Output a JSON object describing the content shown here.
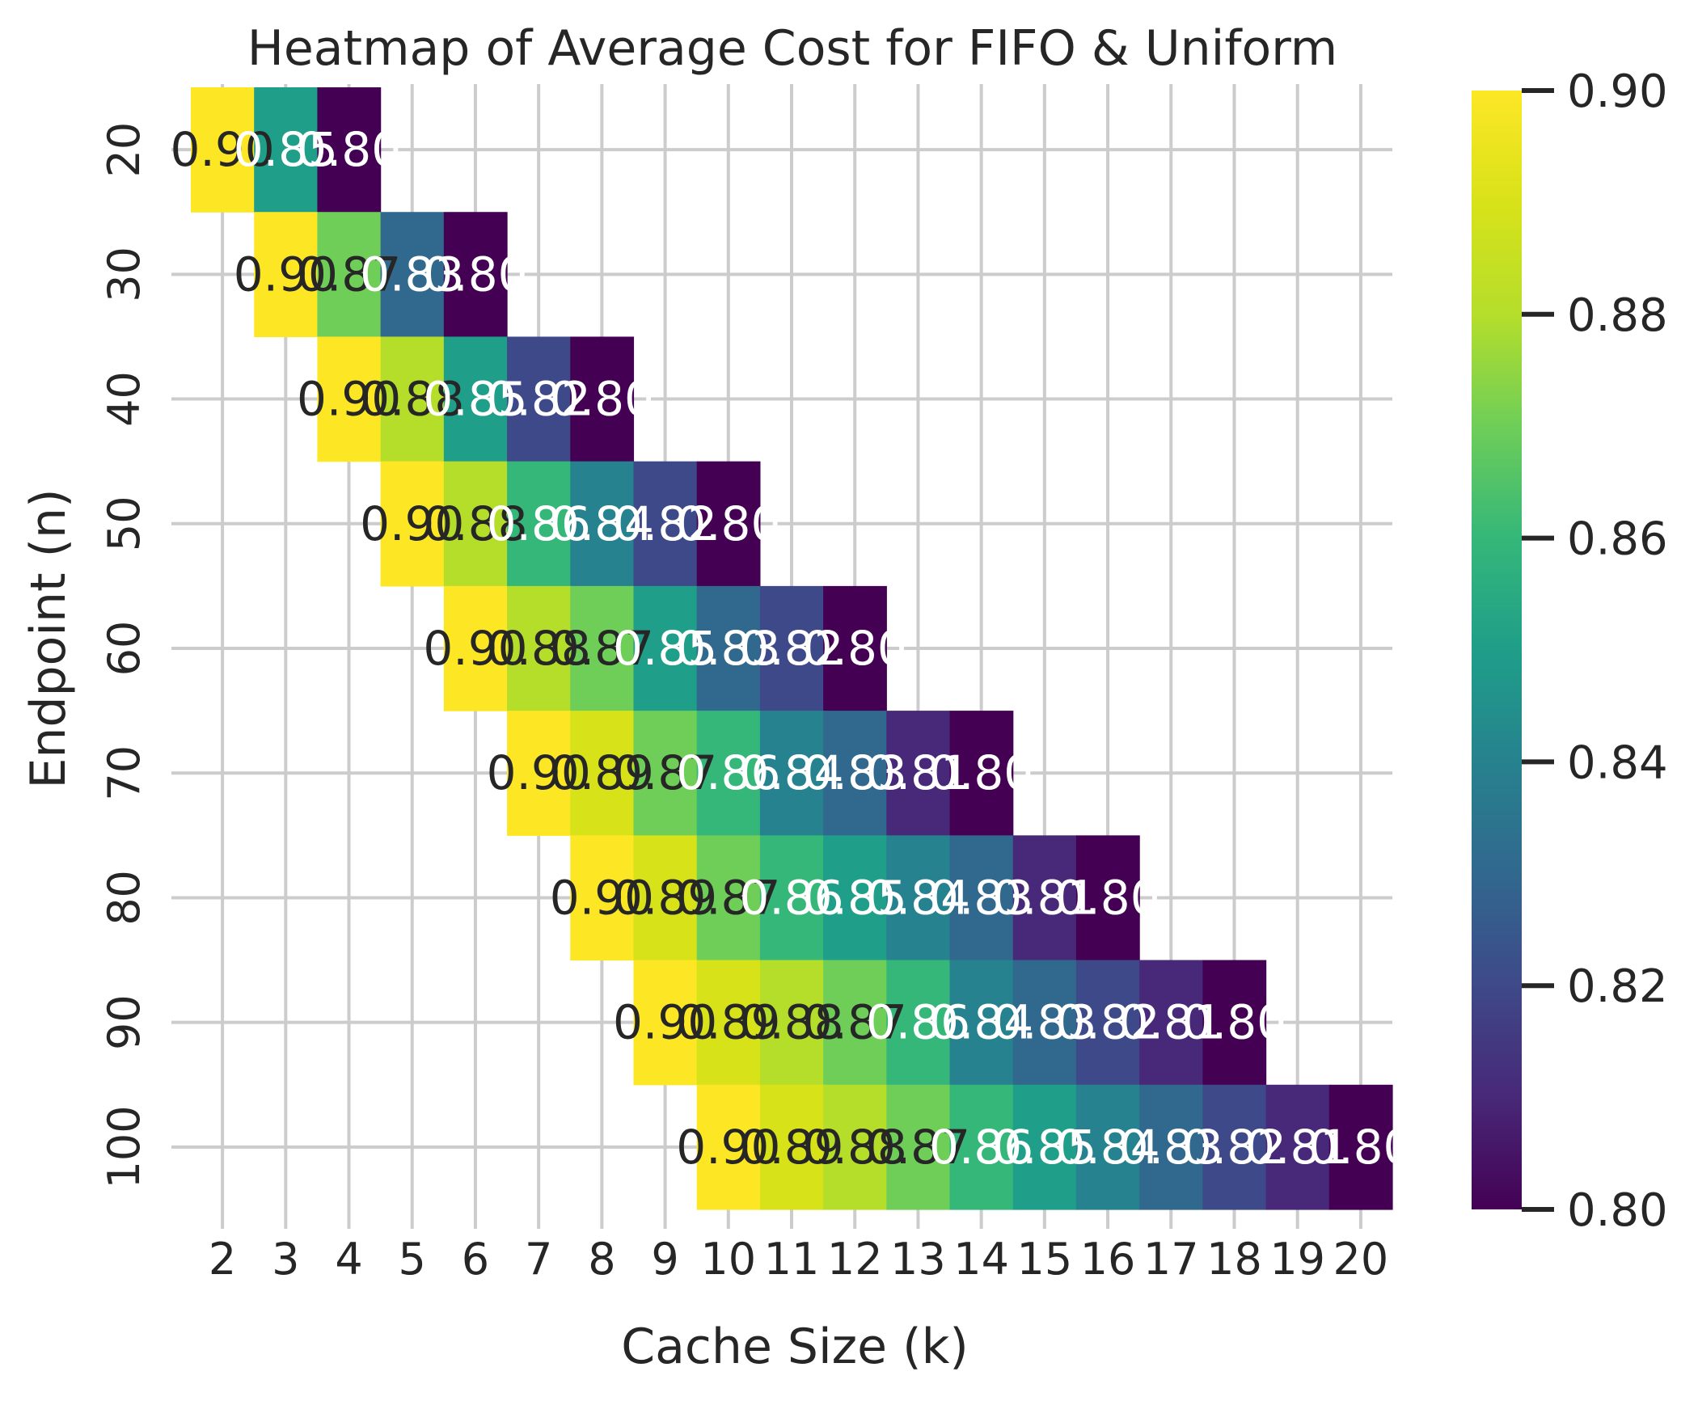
{
  "chart_data": {
    "type": "heatmap",
    "title": "Heatmap of Average Cost for FIFO & Uniform",
    "xlabel": "Cache Size (k)",
    "ylabel": "Endpoint (n)",
    "x_categories": [
      "2",
      "3",
      "4",
      "5",
      "6",
      "7",
      "8",
      "9",
      "10",
      "11",
      "12",
      "13",
      "14",
      "15",
      "16",
      "17",
      "18",
      "19",
      "20"
    ],
    "y_categories": [
      "20",
      "30",
      "40",
      "50",
      "60",
      "70",
      "80",
      "90",
      "100"
    ],
    "colormap": "viridis",
    "vmin": 0.8,
    "vmax": 0.9,
    "colorbar_ticks": [
      "0.80",
      "0.82",
      "0.84",
      "0.86",
      "0.88",
      "0.90"
    ],
    "grid": true,
    "annotate": true,
    "rows": [
      {
        "n": "20",
        "start_k": 2,
        "values": [
          0.9,
          0.85,
          0.8
        ]
      },
      {
        "n": "30",
        "start_k": 3,
        "values": [
          0.9,
          0.87,
          0.83,
          0.8
        ]
      },
      {
        "n": "40",
        "start_k": 4,
        "values": [
          0.9,
          0.88,
          0.85,
          0.82,
          0.8
        ]
      },
      {
        "n": "50",
        "start_k": 5,
        "values": [
          0.9,
          0.88,
          0.86,
          0.84,
          0.82,
          0.8
        ]
      },
      {
        "n": "60",
        "start_k": 6,
        "values": [
          0.9,
          0.88,
          0.87,
          0.85,
          0.83,
          0.82,
          0.8
        ]
      },
      {
        "n": "70",
        "start_k": 7,
        "values": [
          0.9,
          0.89,
          0.87,
          0.86,
          0.84,
          0.83,
          0.81,
          0.8
        ]
      },
      {
        "n": "80",
        "start_k": 8,
        "values": [
          0.9,
          0.89,
          0.87,
          0.86,
          0.85,
          0.84,
          0.83,
          0.81,
          0.8
        ]
      },
      {
        "n": "90",
        "start_k": 9,
        "values": [
          0.9,
          0.89,
          0.88,
          0.87,
          0.86,
          0.84,
          0.83,
          0.82,
          0.81,
          0.8
        ]
      },
      {
        "n": "100",
        "start_k": 10,
        "values": [
          0.9,
          0.89,
          0.88,
          0.87,
          0.86,
          0.85,
          0.84,
          0.83,
          0.82,
          0.81,
          0.8
        ]
      }
    ]
  }
}
